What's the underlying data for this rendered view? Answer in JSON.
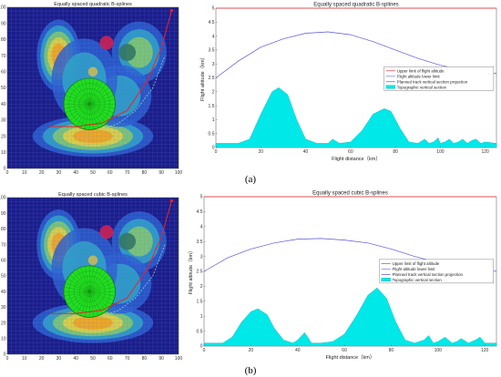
{
  "chart_data": [
    {
      "type": "heatmap",
      "panel": "a",
      "title": "Equally spaced quadratic B-splines",
      "xlim": [
        0,
        100
      ],
      "ylim": [
        0,
        100
      ],
      "x_ticks": [
        "0",
        "10",
        "20",
        "30",
        "40",
        "50",
        "60",
        "70",
        "80",
        "90",
        "100"
      ],
      "y_ticks": [
        "0",
        "10",
        "20",
        "30",
        "40",
        "50",
        "60",
        "70",
        "80",
        "90",
        "100"
      ],
      "colormap": [
        "#1a1d8c",
        "#2c5fd0",
        "#2fa5c8",
        "#86c96a",
        "#e8d040",
        "#f0a020"
      ],
      "peaks": [
        {
          "x": 30,
          "y": 70,
          "rx": 8,
          "ry": 14,
          "level": 0.9
        },
        {
          "x": 50,
          "y": 20,
          "rx": 22,
          "ry": 8,
          "level": 0.95
        },
        {
          "x": 77,
          "y": 72,
          "rx": 10,
          "ry": 12,
          "level": 0.55
        },
        {
          "x": 65,
          "y": 45,
          "rx": 12,
          "ry": 12,
          "level": 0.45
        },
        {
          "x": 45,
          "y": 55,
          "rx": 12,
          "ry": 16,
          "level": 0.4
        }
      ],
      "threats": [
        {
          "x": 48,
          "y": 40,
          "r": 15,
          "color": "#22dd22",
          "style": "radar"
        },
        {
          "x": 58,
          "y": 78,
          "r": 4,
          "color": "#cc2255"
        },
        {
          "x": 70,
          "y": 72,
          "r": 5,
          "color": "#337766"
        },
        {
          "x": 50,
          "y": 60,
          "r": 2.8,
          "color": "#c8b85a"
        }
      ],
      "paths": [
        {
          "style": "solid",
          "color": "#ee2222",
          "points": [
            [
              25,
              26
            ],
            [
              40,
              26
            ],
            [
              55,
              28
            ],
            [
              70,
              36
            ],
            [
              82,
              55
            ],
            [
              90,
              75
            ],
            [
              96,
              98
            ]
          ]
        },
        {
          "style": "dashed",
          "color": "#7fd4d4",
          "points": [
            [
              55,
              24
            ],
            [
              65,
              28
            ],
            [
              75,
              36
            ],
            [
              85,
              50
            ],
            [
              92,
              70
            ]
          ]
        }
      ]
    },
    {
      "type": "area",
      "panel": "a",
      "title": "Equally spaced quadratic B-splines",
      "xlabel": "Flight distance（km）",
      "ylabel": "Flight altitude（km）",
      "xlim": [
        0,
        125
      ],
      "ylim": [
        0,
        5
      ],
      "x_ticks": [
        "0",
        "20",
        "40",
        "60",
        "80",
        "100",
        "120"
      ],
      "y_ticks": [
        "0",
        "0.5",
        "1",
        "1.5",
        "2",
        "2.5",
        "3",
        "3.5",
        "4",
        "4.5",
        "5"
      ],
      "legend": [
        "Upper limit of flight altitude",
        "Flight altitude lower limit",
        "Planned track vertical section projection",
        "Topographic vertical section"
      ],
      "series": [
        {
          "name": "Upper limit of flight altitude",
          "color": "#ee3333",
          "x": [
            0,
            125
          ],
          "y": [
            5,
            5
          ]
        },
        {
          "name": "Flight altitude lower limit",
          "color": "#7777ee",
          "x": [
            0,
            125
          ],
          "y": [
            0.05,
            0.05
          ]
        },
        {
          "name": "Planned track vertical section projection",
          "color": "#5555dd",
          "x": [
            0,
            10,
            20,
            30,
            40,
            50,
            60,
            70,
            80,
            90,
            100,
            110,
            120,
            125
          ],
          "y": [
            2.5,
            3.1,
            3.6,
            3.9,
            4.1,
            4.15,
            4.05,
            3.8,
            3.5,
            3.2,
            2.95,
            2.8,
            2.7,
            2.65
          ]
        },
        {
          "name": "Topographic vertical section",
          "color": "#00e8e8",
          "x": [
            0,
            10,
            15,
            20,
            25,
            28,
            32,
            36,
            40,
            45,
            50,
            52,
            55,
            60,
            65,
            70,
            75,
            78,
            82,
            86,
            90,
            93,
            95,
            97,
            99,
            100,
            102,
            104,
            106,
            108,
            110,
            112,
            114,
            116,
            118,
            120,
            125
          ],
          "y": [
            0.15,
            0.15,
            0.3,
            1.2,
            2.0,
            2.15,
            1.9,
            1.0,
            0.3,
            0.15,
            0.15,
            0.3,
            0.15,
            0.2,
            0.6,
            1.2,
            1.4,
            1.3,
            0.7,
            0.2,
            0.15,
            0.3,
            0.15,
            0.2,
            0.35,
            0.15,
            0.2,
            0.3,
            0.15,
            0.2,
            0.3,
            0.15,
            0.25,
            0.3,
            0.15,
            0.2,
            0.15
          ]
        }
      ]
    },
    {
      "type": "heatmap",
      "panel": "b",
      "title": "Equally spaced cubic B-splines",
      "xlim": [
        0,
        100
      ],
      "ylim": [
        0,
        100
      ],
      "x_ticks": [
        "0",
        "10",
        "20",
        "30",
        "40",
        "50",
        "60",
        "70",
        "80",
        "90",
        "100"
      ],
      "y_ticks": [
        "0",
        "10",
        "20",
        "30",
        "40",
        "50",
        "60",
        "70",
        "80",
        "90",
        "100"
      ],
      "colormap": [
        "#1a1d8c",
        "#2c5fd0",
        "#2fa5c8",
        "#86c96a",
        "#e8d040",
        "#f0a020"
      ],
      "peaks": [
        {
          "x": 30,
          "y": 70,
          "rx": 8,
          "ry": 14,
          "level": 0.9
        },
        {
          "x": 50,
          "y": 20,
          "rx": 22,
          "ry": 8,
          "level": 0.95
        },
        {
          "x": 77,
          "y": 72,
          "rx": 10,
          "ry": 12,
          "level": 0.55
        },
        {
          "x": 65,
          "y": 45,
          "rx": 12,
          "ry": 12,
          "level": 0.45
        },
        {
          "x": 45,
          "y": 55,
          "rx": 12,
          "ry": 16,
          "level": 0.4
        }
      ],
      "threats": [
        {
          "x": 48,
          "y": 40,
          "r": 15,
          "color": "#22dd22",
          "style": "radar"
        },
        {
          "x": 58,
          "y": 78,
          "r": 4,
          "color": "#cc2255"
        },
        {
          "x": 70,
          "y": 72,
          "r": 5,
          "color": "#337766"
        },
        {
          "x": 50,
          "y": 60,
          "r": 2.8,
          "color": "#c8b85a"
        }
      ],
      "paths": [
        {
          "style": "solid",
          "color": "#ee2222",
          "points": [
            [
              25,
              26
            ],
            [
              40,
              26
            ],
            [
              55,
              28
            ],
            [
              70,
              36
            ],
            [
              82,
              55
            ],
            [
              90,
              75
            ],
            [
              96,
              98
            ]
          ]
        },
        {
          "style": "dashed",
          "color": "#7fd4d4",
          "points": [
            [
              55,
              24
            ],
            [
              65,
              28
            ],
            [
              75,
              36
            ],
            [
              85,
              50
            ],
            [
              92,
              70
            ]
          ]
        }
      ]
    },
    {
      "type": "area",
      "panel": "b",
      "title": "Equally spaced cubic B-splines",
      "xlabel": "Flight distance（km）",
      "ylabel": "Flight altitude（km）",
      "xlim": [
        0,
        125
      ],
      "ylim": [
        0,
        5
      ],
      "x_ticks": [
        "0",
        "20",
        "40",
        "60",
        "80",
        "100",
        "120"
      ],
      "y_ticks": [
        "0",
        "0.5",
        "1",
        "1.5",
        "2",
        "2.5",
        "3",
        "3.5",
        "4",
        "4.5",
        "5"
      ],
      "legend": [
        "Upper limit of flight altitude",
        "Flight altitude lower limit",
        "Planned track vertical section projection",
        "Topographic vertical section"
      ],
      "series": [
        {
          "name": "Upper limit of flight altitude",
          "color": "#ee3333",
          "x": [
            0,
            125
          ],
          "y": [
            5,
            5
          ]
        },
        {
          "name": "Flight altitude lower limit",
          "color": "#7777ee",
          "x": [
            0,
            125
          ],
          "y": [
            0.05,
            0.05
          ]
        },
        {
          "name": "Planned track vertical section projection",
          "color": "#5555dd",
          "x": [
            0,
            10,
            20,
            30,
            40,
            50,
            60,
            70,
            80,
            90,
            100,
            110,
            120,
            125
          ],
          "y": [
            2.5,
            2.95,
            3.25,
            3.45,
            3.58,
            3.6,
            3.55,
            3.45,
            3.25,
            3.0,
            2.8,
            2.65,
            2.55,
            2.5
          ]
        },
        {
          "name": "Topographic vertical section",
          "color": "#00e8e8",
          "x": [
            0,
            8,
            12,
            16,
            20,
            23,
            27,
            30,
            34,
            38,
            40,
            43,
            46,
            50,
            55,
            60,
            65,
            70,
            74,
            78,
            82,
            86,
            90,
            94,
            96,
            98,
            100,
            103,
            106,
            108,
            110,
            113,
            116,
            118,
            120,
            125
          ],
          "y": [
            0.1,
            0.1,
            0.3,
            0.8,
            1.15,
            1.25,
            1.05,
            0.6,
            0.2,
            0.1,
            0.2,
            0.45,
            0.1,
            0.1,
            0.15,
            0.4,
            1.0,
            1.7,
            1.95,
            1.6,
            0.8,
            0.2,
            0.1,
            0.2,
            0.35,
            0.1,
            0.15,
            0.3,
            0.1,
            0.15,
            0.25,
            0.1,
            0.2,
            0.3,
            0.1,
            0.1
          ]
        }
      ]
    }
  ],
  "labels": {
    "a": "(a)",
    "b": "(b)"
  }
}
